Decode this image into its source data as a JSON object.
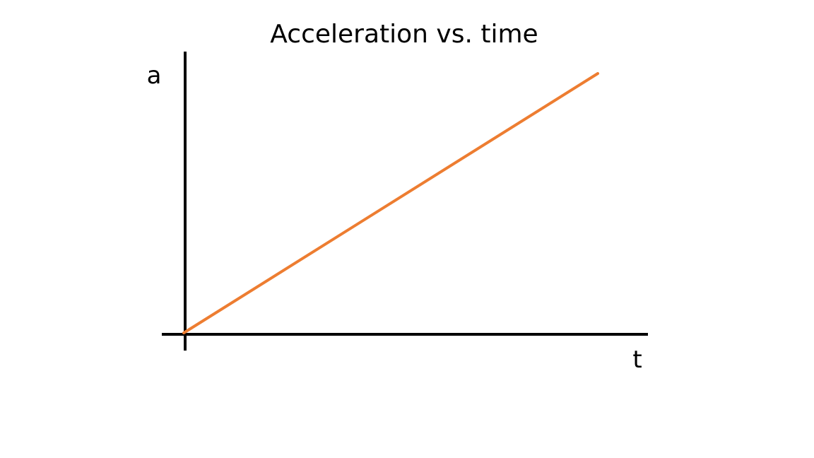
{
  "chart_data": {
    "type": "line",
    "title": "Acceleration vs. time",
    "xlabel": "t",
    "ylabel": "a",
    "grid": false,
    "series": [
      {
        "x": [
          0,
          1
        ],
        "values": [
          0,
          1
        ]
      }
    ],
    "colors": {
      "line": "#ed7d31",
      "axes": "#000000"
    }
  }
}
